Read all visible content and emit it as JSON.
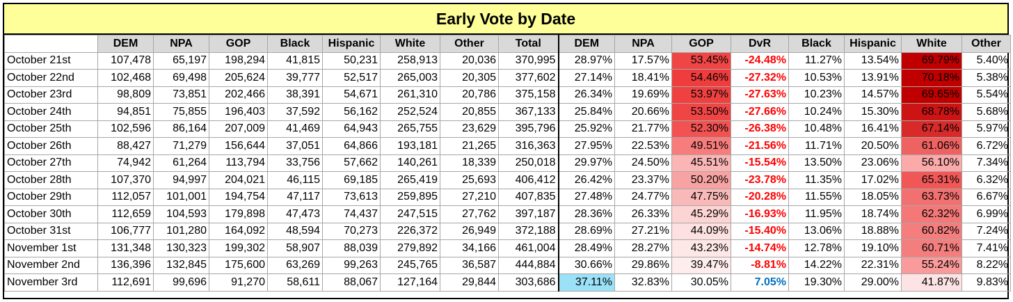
{
  "title": "Early Vote by Date",
  "headers": [
    "",
    "DEM",
    "NPA",
    "GOP",
    "Black",
    "Hispanic",
    "White",
    "Other",
    "Total",
    "DEM",
    "NPA",
    "GOP",
    "DvR",
    "Black",
    "Hispanic",
    "White",
    "Other"
  ],
  "rows": [
    {
      "date": "October 21st",
      "dem": "107,478",
      "npa": "65,197",
      "gop": "198,294",
      "black": "41,815",
      "hispanic": "50,231",
      "white": "258,913",
      "other": "20,036",
      "total": "370,995",
      "dem_pct": "28.97%",
      "npa_pct": "17.57%",
      "gop_pct": "53.45%",
      "dvr": "-24.48%",
      "black_pct": "11.27%",
      "hispanic_pct": "13.54%",
      "white_pct": "69.79%",
      "other_pct": "5.40%"
    },
    {
      "date": "October 22nd",
      "dem": "102,468",
      "npa": "69,498",
      "gop": "205,624",
      "black": "39,777",
      "hispanic": "52,517",
      "white": "265,003",
      "other": "20,305",
      "total": "377,602",
      "dem_pct": "27.14%",
      "npa_pct": "18.41%",
      "gop_pct": "54.46%",
      "dvr": "-27.32%",
      "black_pct": "10.53%",
      "hispanic_pct": "13.91%",
      "white_pct": "70.18%",
      "other_pct": "5.38%"
    },
    {
      "date": "October 23rd",
      "dem": "98,809",
      "npa": "73,851",
      "gop": "202,466",
      "black": "38,391",
      "hispanic": "54,671",
      "white": "261,310",
      "other": "20,786",
      "total": "375,158",
      "dem_pct": "26.34%",
      "npa_pct": "19.69%",
      "gop_pct": "53.97%",
      "dvr": "-27.63%",
      "black_pct": "10.23%",
      "hispanic_pct": "14.57%",
      "white_pct": "69.65%",
      "other_pct": "5.54%"
    },
    {
      "date": "October 24th",
      "dem": "94,851",
      "npa": "75,855",
      "gop": "196,403",
      "black": "37,592",
      "hispanic": "56,162",
      "white": "252,524",
      "other": "20,855",
      "total": "367,133",
      "dem_pct": "25.84%",
      "npa_pct": "20.66%",
      "gop_pct": "53.50%",
      "dvr": "-27.66%",
      "black_pct": "10.24%",
      "hispanic_pct": "15.30%",
      "white_pct": "68.78%",
      "other_pct": "5.68%"
    },
    {
      "date": "October 25th",
      "dem": "102,596",
      "npa": "86,164",
      "gop": "207,009",
      "black": "41,469",
      "hispanic": "64,943",
      "white": "265,755",
      "other": "23,629",
      "total": "395,796",
      "dem_pct": "25.92%",
      "npa_pct": "21.77%",
      "gop_pct": "52.30%",
      "dvr": "-26.38%",
      "black_pct": "10.48%",
      "hispanic_pct": "16.41%",
      "white_pct": "67.14%",
      "other_pct": "5.97%"
    },
    {
      "date": "October 26th",
      "dem": "88,427",
      "npa": "71,279",
      "gop": "156,644",
      "black": "37,051",
      "hispanic": "64,866",
      "white": "193,181",
      "other": "21,265",
      "total": "316,363",
      "dem_pct": "27.95%",
      "npa_pct": "22.53%",
      "gop_pct": "49.51%",
      "dvr": "-21.56%",
      "black_pct": "11.71%",
      "hispanic_pct": "20.50%",
      "white_pct": "61.06%",
      "other_pct": "6.72%"
    },
    {
      "date": "October 27th",
      "dem": "74,942",
      "npa": "61,264",
      "gop": "113,794",
      "black": "33,756",
      "hispanic": "57,662",
      "white": "140,261",
      "other": "18,339",
      "total": "250,018",
      "dem_pct": "29.97%",
      "npa_pct": "24.50%",
      "gop_pct": "45.51%",
      "dvr": "-15.54%",
      "black_pct": "13.50%",
      "hispanic_pct": "23.06%",
      "white_pct": "56.10%",
      "other_pct": "7.34%"
    },
    {
      "date": "October 28th",
      "dem": "107,370",
      "npa": "94,997",
      "gop": "204,021",
      "black": "46,115",
      "hispanic": "69,185",
      "white": "265,419",
      "other": "25,693",
      "total": "406,412",
      "dem_pct": "26.42%",
      "npa_pct": "23.37%",
      "gop_pct": "50.20%",
      "dvr": "-23.78%",
      "black_pct": "11.35%",
      "hispanic_pct": "17.02%",
      "white_pct": "65.31%",
      "other_pct": "6.32%"
    },
    {
      "date": "October 29th",
      "dem": "112,057",
      "npa": "101,001",
      "gop": "194,754",
      "black": "47,117",
      "hispanic": "73,613",
      "white": "259,895",
      "other": "27,210",
      "total": "407,835",
      "dem_pct": "27.48%",
      "npa_pct": "24.77%",
      "gop_pct": "47.75%",
      "dvr": "-20.28%",
      "black_pct": "11.55%",
      "hispanic_pct": "18.05%",
      "white_pct": "63.73%",
      "other_pct": "6.67%"
    },
    {
      "date": "October 30th",
      "dem": "112,659",
      "npa": "104,593",
      "gop": "179,898",
      "black": "47,473",
      "hispanic": "74,437",
      "white": "247,515",
      "other": "27,762",
      "total": "397,187",
      "dem_pct": "28.36%",
      "npa_pct": "26.33%",
      "gop_pct": "45.29%",
      "dvr": "-16.93%",
      "black_pct": "11.95%",
      "hispanic_pct": "18.74%",
      "white_pct": "62.32%",
      "other_pct": "6.99%"
    },
    {
      "date": "October 31st",
      "dem": "106,777",
      "npa": "101,280",
      "gop": "164,092",
      "black": "48,594",
      "hispanic": "70,273",
      "white": "226,372",
      "other": "26,949",
      "total": "372,188",
      "dem_pct": "28.69%",
      "npa_pct": "27.21%",
      "gop_pct": "44.09%",
      "dvr": "-15.40%",
      "black_pct": "13.06%",
      "hispanic_pct": "18.88%",
      "white_pct": "60.82%",
      "other_pct": "7.24%"
    },
    {
      "date": "November 1st",
      "dem": "131,348",
      "npa": "130,323",
      "gop": "199,302",
      "black": "58,907",
      "hispanic": "88,039",
      "white": "279,892",
      "other": "34,166",
      "total": "461,004",
      "dem_pct": "28.49%",
      "npa_pct": "28.27%",
      "gop_pct": "43.23%",
      "dvr": "-14.74%",
      "black_pct": "12.78%",
      "hispanic_pct": "19.10%",
      "white_pct": "60.71%",
      "other_pct": "7.41%"
    },
    {
      "date": "November 2nd",
      "dem": "136,396",
      "npa": "132,845",
      "gop": "175,600",
      "black": "63,269",
      "hispanic": "99,263",
      "white": "245,765",
      "other": "36,587",
      "total": "444,884",
      "dem_pct": "30.66%",
      "npa_pct": "29.86%",
      "gop_pct": "39.47%",
      "dvr": "-8.81%",
      "black_pct": "14.22%",
      "hispanic_pct": "22.31%",
      "white_pct": "55.24%",
      "other_pct": "8.22%"
    },
    {
      "date": "November 3rd",
      "dem": "112,691",
      "npa": "99,696",
      "gop": "91,270",
      "black": "58,611",
      "hispanic": "88,067",
      "white": "127,164",
      "other": "29,844",
      "total": "303,686",
      "dem_pct": "37.11%",
      "npa_pct": "32.83%",
      "gop_pct": "30.05%",
      "dvr": "7.05%",
      "black_pct": "19.30%",
      "hispanic_pct": "29.00%",
      "white_pct": "41.87%",
      "other_pct": "9.83%"
    }
  ],
  "fills": {
    "gop_pct": [
      "#f04545",
      "#ef3d3d",
      "#f04141",
      "#f04545",
      "#f35252",
      "#f77c7c",
      "#fbb5b5",
      "#f8a3a3",
      "#f9b9b9",
      "#fdd4d4",
      "#fde0e0",
      "#fee7e7",
      "#ffecec",
      "#ffffff"
    ],
    "white_pct": [
      "#c00000",
      "#c00000",
      "#c00000",
      "#cc1414",
      "#d92a2a",
      "#ee6262",
      "#fba9a9",
      "#f05858",
      "#f37070",
      "#f47878",
      "#f47e7e",
      "#f47e7e",
      "#fa9b9b",
      "#fde3e3"
    ],
    "dem_pct_highlight_last": "#9be1f7"
  }
}
